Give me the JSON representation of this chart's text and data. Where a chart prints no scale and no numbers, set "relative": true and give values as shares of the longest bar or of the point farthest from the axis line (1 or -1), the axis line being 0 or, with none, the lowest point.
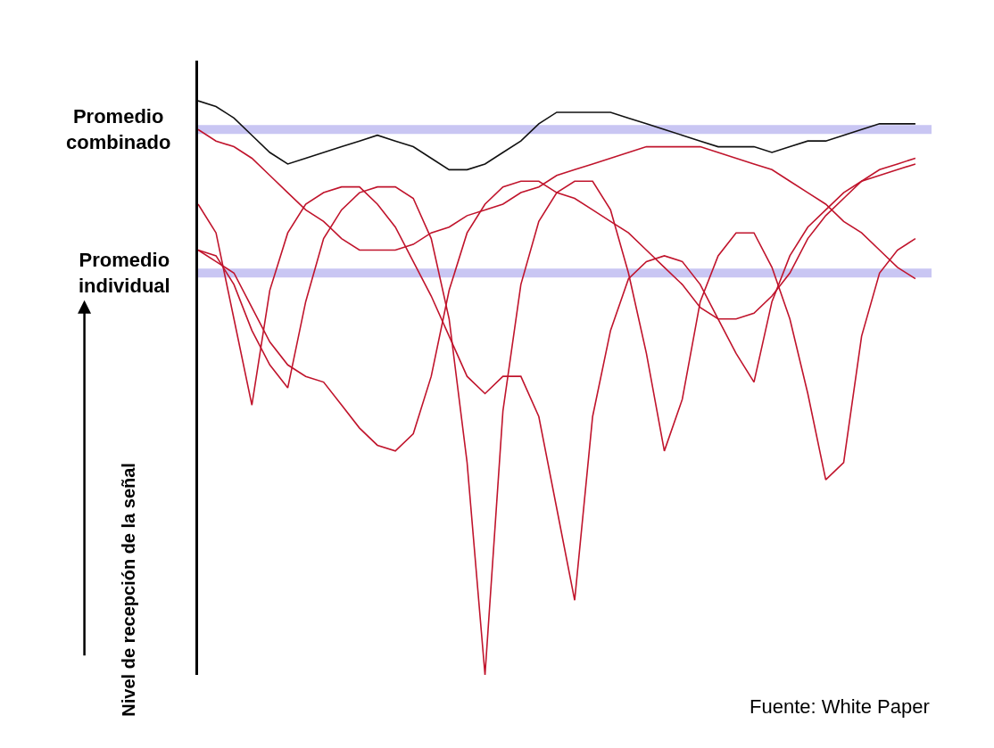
{
  "chart_data": {
    "type": "line",
    "relative": true,
    "ylabel": "Nivel de recepción de la señal",
    "categories": [
      null,
      null,
      null,
      null,
      null,
      null,
      null,
      null,
      null,
      null,
      null,
      null,
      null,
      null,
      null,
      null,
      null,
      null,
      null,
      null,
      null,
      null,
      null,
      null,
      null,
      null,
      null,
      null,
      null,
      null,
      null,
      null,
      null,
      null,
      null,
      null,
      null,
      null,
      null,
      null,
      null
    ],
    "series": [
      {
        "color": "#111111",
        "values": [
          1.0,
          0.99,
          0.97,
          0.94,
          0.91,
          0.89,
          0.9,
          0.91,
          0.92,
          0.93,
          0.94,
          0.93,
          0.92,
          0.9,
          0.88,
          0.88,
          0.89,
          0.91,
          0.93,
          0.96,
          0.98,
          0.98,
          0.98,
          0.98,
          0.97,
          0.96,
          0.95,
          0.94,
          0.93,
          0.92,
          0.92,
          0.92,
          0.91,
          0.92,
          0.93,
          0.93,
          0.94,
          0.95,
          0.96,
          0.96,
          0.96
        ]
      },
      {
        "color": "#c0142c",
        "values": [
          0.95,
          0.93,
          0.92,
          0.9,
          0.87,
          0.84,
          0.81,
          0.79,
          0.76,
          0.74,
          0.74,
          0.74,
          0.75,
          0.77,
          0.78,
          0.8,
          0.81,
          0.82,
          0.84,
          0.85,
          0.87,
          0.88,
          0.89,
          0.9,
          0.91,
          0.92,
          0.92,
          0.92,
          0.92,
          0.91,
          0.9,
          0.89,
          0.88,
          0.86,
          0.84,
          0.82,
          0.79,
          0.77,
          0.74,
          0.71,
          0.69
        ]
      },
      {
        "color": "#c0142c",
        "values": [
          0.82,
          0.77,
          0.62,
          0.47,
          0.67,
          0.77,
          0.82,
          0.84,
          0.85,
          0.85,
          0.82,
          0.78,
          0.72,
          0.66,
          0.59,
          0.52,
          0.49,
          0.52,
          0.52,
          0.45,
          0.29,
          0.13,
          0.45,
          0.6,
          0.69,
          0.72,
          0.73,
          0.72,
          0.68,
          0.62,
          0.56,
          0.51,
          0.65,
          0.73,
          0.78,
          0.81,
          0.84,
          0.86,
          0.88,
          0.89,
          0.9
        ]
      },
      {
        "color": "#c0142c",
        "values": [
          0.74,
          0.73,
          0.68,
          0.6,
          0.54,
          0.5,
          0.65,
          0.76,
          0.81,
          0.84,
          0.85,
          0.85,
          0.83,
          0.76,
          0.62,
          0.37,
          0.0,
          0.46,
          0.68,
          0.79,
          0.84,
          0.86,
          0.86,
          0.81,
          0.7,
          0.56,
          0.39,
          0.48,
          0.65,
          0.73,
          0.77,
          0.77,
          0.71,
          0.62,
          0.49,
          0.34,
          0.37,
          0.59,
          0.7,
          0.74,
          0.76
        ]
      },
      {
        "color": "#c0142c",
        "values": [
          0.74,
          0.72,
          0.7,
          0.64,
          0.58,
          0.54,
          0.52,
          0.51,
          0.47,
          0.43,
          0.4,
          0.39,
          0.42,
          0.52,
          0.67,
          0.77,
          0.82,
          0.85,
          0.86,
          0.86,
          0.84,
          0.83,
          0.81,
          0.79,
          0.77,
          0.74,
          0.71,
          0.68,
          0.64,
          0.62,
          0.62,
          0.63,
          0.66,
          0.7,
          0.76,
          0.8,
          0.83,
          0.86,
          0.87,
          0.88,
          0.89
        ]
      }
    ],
    "ref_lines": [
      {
        "axis": "y",
        "value": 0.95,
        "label": "Promedio\ncombinado",
        "color": "#c9c6f3"
      },
      {
        "axis": "y",
        "value": 0.7,
        "label": "Promedio\nindividual",
        "color": "#c9c6f3"
      }
    ],
    "annotations": [
      "Fuente: White Paper"
    ]
  }
}
